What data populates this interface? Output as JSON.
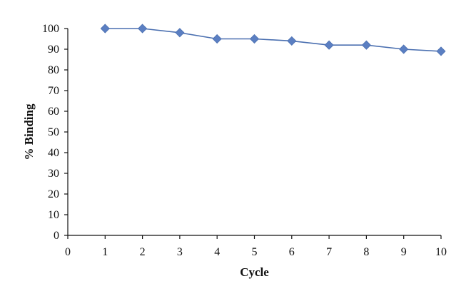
{
  "chart_data": {
    "type": "line",
    "xlabel": "Cycle",
    "ylabel": "% Binding",
    "xlim": [
      0,
      10
    ],
    "ylim": [
      0,
      100
    ],
    "x_ticks": [
      "0",
      "1",
      "2",
      "3",
      "4",
      "5",
      "6",
      "7",
      "8",
      "9",
      "10"
    ],
    "y_ticks": [
      "0",
      "10",
      "20",
      "30",
      "40",
      "50",
      "60",
      "70",
      "80",
      "90",
      "100"
    ],
    "grid": false,
    "legend": "none",
    "series": [
      {
        "x": [
          1,
          2,
          3,
          4,
          5,
          6,
          7,
          8,
          9,
          10
        ],
        "y": [
          100,
          100,
          98,
          95,
          95,
          94,
          92,
          92,
          90,
          89
        ],
        "color": "#4a6fb0",
        "marker": "diamond",
        "marker_color": "#5b7fc2"
      }
    ]
  }
}
